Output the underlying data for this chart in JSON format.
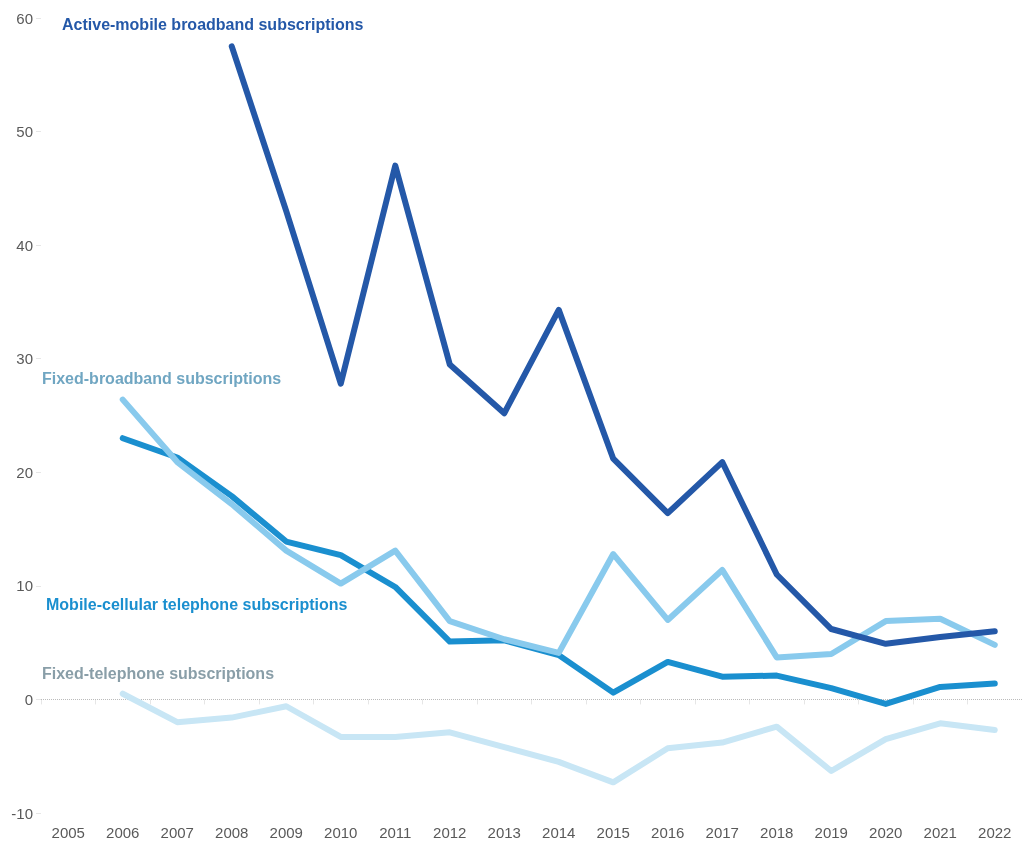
{
  "chart_data": {
    "type": "line",
    "categories": [
      "2005",
      "2006",
      "2007",
      "2008",
      "2009",
      "2010",
      "2011",
      "2012",
      "2013",
      "2014",
      "2015",
      "2016",
      "2017",
      "2018",
      "2019",
      "2020",
      "2021",
      "2022"
    ],
    "series": [
      {
        "name": "Active-mobile broadband subscriptions",
        "color": "#2458a8",
        "values": [
          null,
          null,
          null,
          57.5,
          43,
          27.8,
          47.0,
          29.5,
          25.2,
          34.3,
          21.2,
          16.4,
          20.9,
          11.0,
          6.2,
          4.9,
          5.5,
          6.0
        ]
      },
      {
        "name": "Fixed-broadband subscriptions",
        "color": "#89caed",
        "values": [
          null,
          26.4,
          20.9,
          17.2,
          13.1,
          10.2,
          13.1,
          6.9,
          5.3,
          4.1,
          12.8,
          7.0,
          11.4,
          3.7,
          4.0,
          6.9,
          7.1,
          4.8
        ]
      },
      {
        "name": "Mobile-cellular telephone subscriptions",
        "color": "#1a8fcf",
        "values": [
          null,
          23.0,
          21.3,
          17.9,
          13.9,
          12.7,
          9.9,
          5.1,
          5.2,
          3.9,
          0.6,
          3.3,
          2.0,
          2.1,
          1.0,
          -0.4,
          1.1,
          1.4
        ]
      },
      {
        "name": "Fixed-telephone subscriptions",
        "color": "#c8e6f5",
        "values": [
          null,
          0.5,
          -2.0,
          -1.6,
          -0.6,
          -3.3,
          -3.3,
          -2.9,
          -4.2,
          -5.5,
          -7.3,
          -4.3,
          -3.8,
          -2.4,
          -6.3,
          -3.5,
          -2.1,
          -2.7
        ]
      }
    ],
    "ylim": [
      -10,
      60
    ],
    "yticks": [
      -10,
      0,
      10,
      20,
      30,
      40,
      50,
      60
    ],
    "ref_lines": [
      {
        "axis": "y",
        "value": 0,
        "color": "#bbbbbb",
        "line_style": "dotted"
      }
    ],
    "grid": false,
    "legend": false,
    "marker": "none",
    "line_style": "solid"
  }
}
